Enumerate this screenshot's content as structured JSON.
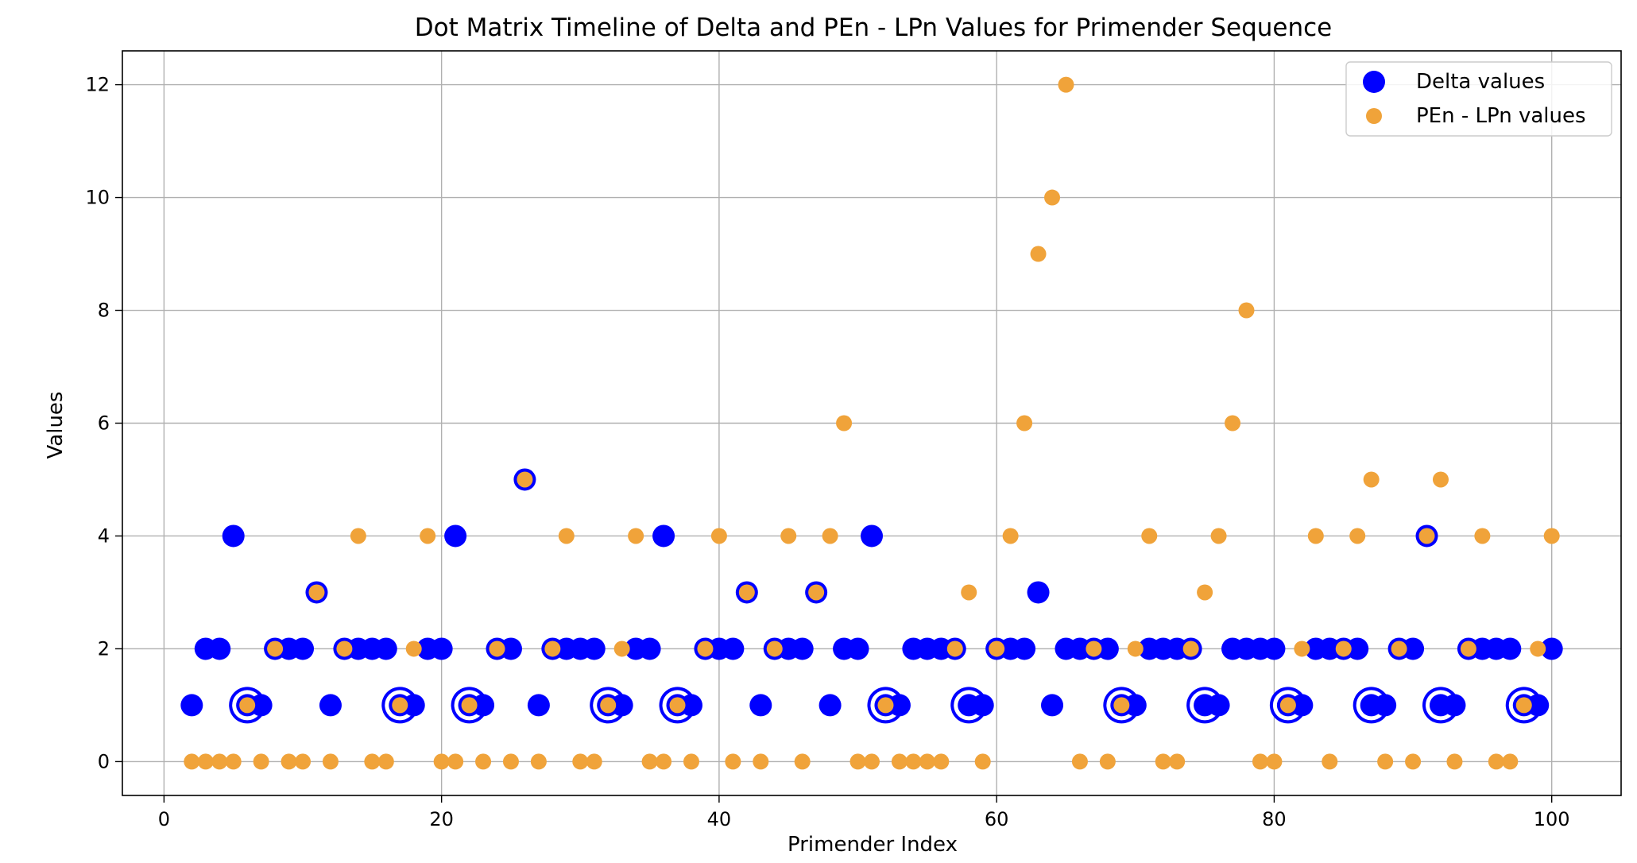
{
  "chart_data": {
    "type": "scatter",
    "title": "Dot Matrix Timeline of Delta and PEn - LPn Values for Primender Sequence",
    "xlabel": "Primender Index",
    "ylabel": "Values",
    "xlim": [
      -3,
      105
    ],
    "ylim": [
      -0.6,
      12.6
    ],
    "xticks": [
      0,
      20,
      40,
      60,
      80,
      100
    ],
    "yticks": [
      0,
      2,
      4,
      6,
      8,
      10,
      12
    ],
    "grid": true,
    "legend_position": "upper right",
    "series": [
      {
        "name": "Delta values",
        "color": "#0000ff",
        "x": [
          2,
          3,
          4,
          5,
          6,
          7,
          8,
          9,
          10,
          11,
          12,
          13,
          14,
          15,
          16,
          17,
          18,
          19,
          20,
          21,
          22,
          23,
          24,
          25,
          26,
          27,
          28,
          29,
          30,
          31,
          32,
          33,
          34,
          35,
          36,
          37,
          38,
          39,
          40,
          41,
          42,
          43,
          44,
          45,
          46,
          47,
          48,
          49,
          50,
          51,
          52,
          53,
          54,
          55,
          56,
          57,
          58,
          59,
          60,
          61,
          62,
          63,
          64,
          65,
          66,
          67,
          68,
          69,
          70,
          71,
          72,
          73,
          74,
          75,
          76,
          77,
          78,
          79,
          80,
          81,
          82,
          83,
          84,
          85,
          86,
          87,
          88,
          89,
          90,
          91,
          92,
          93,
          94,
          95,
          96,
          97,
          98,
          99,
          100
        ],
        "y": [
          1,
          2,
          2,
          4,
          1,
          1,
          2,
          2,
          2,
          3,
          1,
          2,
          2,
          2,
          2,
          1,
          1,
          2,
          2,
          4,
          1,
          1,
          2,
          2,
          5,
          1,
          2,
          2,
          2,
          2,
          1,
          1,
          2,
          2,
          4,
          1,
          1,
          2,
          2,
          2,
          3,
          1,
          2,
          2,
          2,
          3,
          1,
          2,
          2,
          4,
          1,
          1,
          2,
          2,
          2,
          2,
          1,
          1,
          2,
          2,
          2,
          3,
          1,
          2,
          2,
          2,
          2,
          1,
          1,
          2,
          2,
          2,
          2,
          1,
          1,
          2,
          2,
          2,
          2,
          1,
          1,
          2,
          2,
          2,
          2,
          1,
          1,
          2,
          2,
          4,
          1,
          1,
          2,
          2,
          2,
          2,
          1,
          1,
          2
        ]
      },
      {
        "name": "PEn - LPn values",
        "color": "#f0a33a",
        "x": [
          2,
          3,
          4,
          5,
          6,
          7,
          8,
          9,
          10,
          11,
          12,
          13,
          14,
          15,
          16,
          17,
          18,
          19,
          20,
          21,
          22,
          23,
          24,
          25,
          26,
          27,
          28,
          29,
          30,
          31,
          32,
          33,
          34,
          35,
          36,
          37,
          38,
          39,
          40,
          41,
          42,
          43,
          44,
          45,
          46,
          47,
          48,
          49,
          50,
          51,
          52,
          53,
          54,
          55,
          56,
          57,
          58,
          59,
          60,
          61,
          62,
          63,
          64,
          65,
          66,
          67,
          68,
          69,
          70,
          71,
          72,
          73,
          74,
          75,
          76,
          77,
          78,
          79,
          80,
          81,
          82,
          83,
          84,
          85,
          86,
          87,
          88,
          89,
          90,
          91,
          92,
          93,
          94,
          95,
          96,
          97,
          98,
          99,
          100
        ],
        "y": [
          0,
          0,
          0,
          0,
          1,
          0,
          2,
          0,
          0,
          3,
          0,
          2,
          4,
          0,
          0,
          1,
          2,
          4,
          0,
          0,
          1,
          0,
          2,
          0,
          5,
          0,
          2,
          4,
          0,
          0,
          1,
          2,
          4,
          0,
          0,
          1,
          0,
          2,
          4,
          0,
          3,
          0,
          2,
          4,
          0,
          3,
          4,
          6,
          0,
          0,
          1,
          0,
          0,
          0,
          0,
          2,
          3,
          0,
          2,
          4,
          6,
          9,
          10,
          12,
          0,
          2,
          0,
          1,
          2,
          4,
          0,
          0,
          2,
          3,
          4,
          6,
          8,
          0,
          0,
          1,
          2,
          4,
          0,
          2,
          4,
          5,
          0,
          2,
          0,
          4,
          5,
          0,
          2,
          4,
          0,
          0,
          1,
          2,
          4
        ]
      }
    ],
    "legend": [
      {
        "label": "Delta values",
        "color": "#0000ff"
      },
      {
        "label": "PEn - LPn values",
        "color": "#f0a33a"
      }
    ]
  }
}
